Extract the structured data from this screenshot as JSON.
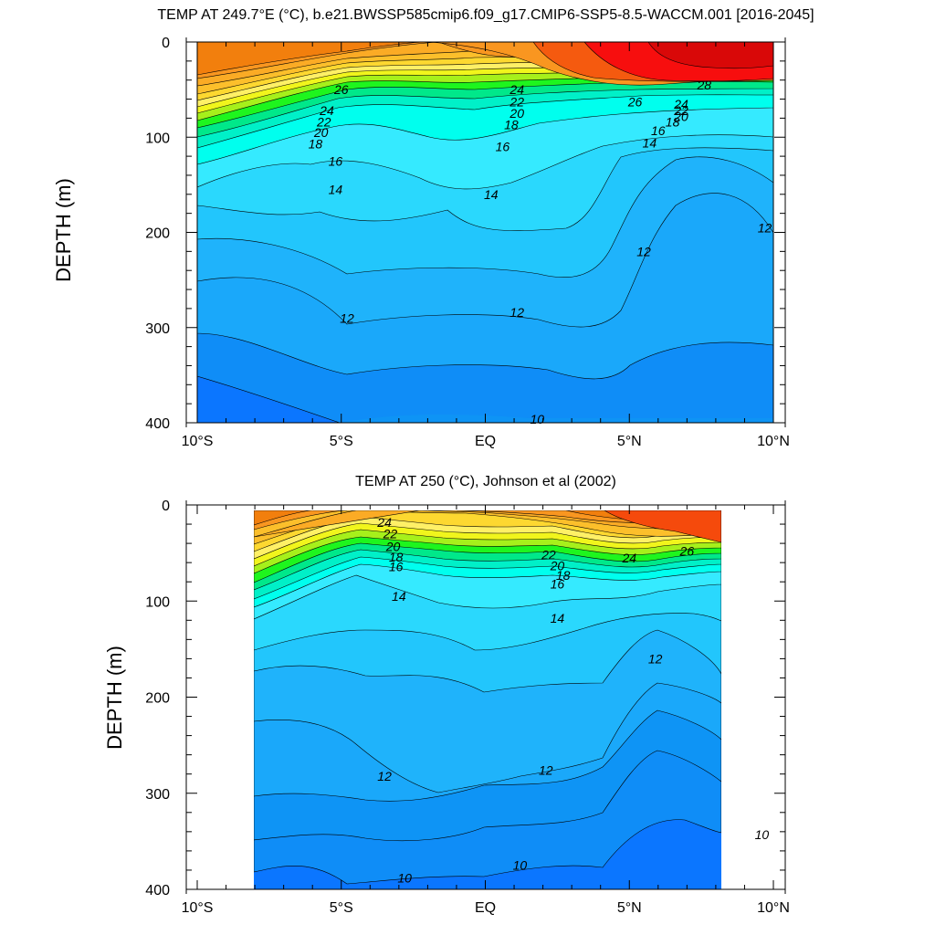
{
  "chart_data": [
    {
      "type": "contour",
      "title": "TEMP AT 249.7°E (°C), b.e21.BWSSP585cmip6.f09_g17.CMIP6-SSP5-8.5-WACCM.001 [2016-2045]",
      "ylabel": "DEPTH (m)",
      "xlabel": "",
      "x_ticks": [
        "10°S",
        "5°S",
        "EQ",
        "5°N",
        "10°N"
      ],
      "x_tick_values": [
        -10,
        -5,
        0,
        5,
        10
      ],
      "y_ticks": [
        "0",
        "100",
        "200",
        "300",
        "400"
      ],
      "y_tick_values": [
        0,
        100,
        200,
        300,
        400
      ],
      "xlim": [
        -10,
        10
      ],
      "ylim": [
        0,
        400
      ],
      "y_reversed": true,
      "data_xrange": [
        -10,
        10
      ],
      "data_yrange": [
        5,
        400
      ],
      "levels": [
        10,
        11,
        12,
        13,
        14,
        15,
        16,
        17,
        18,
        19,
        20,
        21,
        22,
        23,
        24,
        25,
        26,
        27,
        28,
        29
      ],
      "contour_labels": [
        {
          "value": "26",
          "x": -5.0,
          "y": 50
        },
        {
          "value": "24",
          "x": -5.5,
          "y": 72
        },
        {
          "value": "22",
          "x": -5.6,
          "y": 84
        },
        {
          "value": "20",
          "x": -5.7,
          "y": 95
        },
        {
          "value": "18",
          "x": -5.9,
          "y": 107
        },
        {
          "value": "16",
          "x": -5.2,
          "y": 125
        },
        {
          "value": "14",
          "x": -5.2,
          "y": 155
        },
        {
          "value": "14",
          "x": 0.2,
          "y": 160
        },
        {
          "value": "12",
          "x": -4.8,
          "y": 290
        },
        {
          "value": "12",
          "x": 1.1,
          "y": 284
        },
        {
          "value": "24",
          "x": 1.1,
          "y": 50
        },
        {
          "value": "22",
          "x": 1.1,
          "y": 63
        },
        {
          "value": "20",
          "x": 1.1,
          "y": 75
        },
        {
          "value": "18",
          "x": 0.9,
          "y": 87
        },
        {
          "value": "16",
          "x": 0.6,
          "y": 110
        },
        {
          "value": "26",
          "x": 5.2,
          "y": 63
        },
        {
          "value": "24",
          "x": 6.8,
          "y": 65
        },
        {
          "value": "22",
          "x": 6.8,
          "y": 72
        },
        {
          "value": "20",
          "x": 6.8,
          "y": 78
        },
        {
          "value": "18",
          "x": 6.5,
          "y": 84
        },
        {
          "value": "16",
          "x": 6.0,
          "y": 93
        },
        {
          "value": "14",
          "x": 5.7,
          "y": 106
        },
        {
          "value": "12",
          "x": 5.5,
          "y": 220
        },
        {
          "value": "12",
          "x": 9.7,
          "y": 195
        },
        {
          "value": "28",
          "x": 7.6,
          "y": 45
        },
        {
          "value": "10",
          "x": 1.8,
          "y": 396
        }
      ]
    },
    {
      "type": "contour",
      "title": "TEMP AT 250 (°C), Johnson et al (2002)",
      "ylabel": "DEPTH (m)",
      "xlabel": "",
      "x_ticks": [
        "10°S",
        "5°S",
        "EQ",
        "5°N",
        "10°N"
      ],
      "x_tick_values": [
        -10,
        -5,
        0,
        5,
        10
      ],
      "y_ticks": [
        "0",
        "100",
        "200",
        "300",
        "400"
      ],
      "y_tick_values": [
        0,
        100,
        200,
        300,
        400
      ],
      "xlim": [
        -10,
        10
      ],
      "ylim": [
        0,
        400
      ],
      "y_reversed": true,
      "data_xrange": [
        -8,
        8.2
      ],
      "data_yrange": [
        5,
        400
      ],
      "levels": [
        10,
        11,
        12,
        13,
        14,
        15,
        16,
        17,
        18,
        19,
        20,
        21,
        22,
        23,
        24,
        25,
        26,
        27
      ],
      "contour_labels": [
        {
          "value": "24",
          "x": -3.5,
          "y": 18
        },
        {
          "value": "22",
          "x": -3.3,
          "y": 30
        },
        {
          "value": "20",
          "x": -3.2,
          "y": 43
        },
        {
          "value": "18",
          "x": -3.1,
          "y": 54
        },
        {
          "value": "16",
          "x": -3.1,
          "y": 64
        },
        {
          "value": "14",
          "x": -3.0,
          "y": 95
        },
        {
          "value": "12",
          "x": -3.5,
          "y": 282
        },
        {
          "value": "12",
          "x": 2.1,
          "y": 276
        },
        {
          "value": "22",
          "x": 2.2,
          "y": 52
        },
        {
          "value": "20",
          "x": 2.5,
          "y": 63
        },
        {
          "value": "18",
          "x": 2.7,
          "y": 73
        },
        {
          "value": "16",
          "x": 2.5,
          "y": 82
        },
        {
          "value": "14",
          "x": 2.5,
          "y": 118
        },
        {
          "value": "24",
          "x": 5.0,
          "y": 55
        },
        {
          "value": "26",
          "x": 7.0,
          "y": 48
        },
        {
          "value": "12",
          "x": 5.9,
          "y": 160
        },
        {
          "value": "10",
          "x": 1.2,
          "y": 375
        },
        {
          "value": "10",
          "x": 9.6,
          "y": 343
        },
        {
          "value": "10",
          "x": -2.8,
          "y": 388
        }
      ]
    }
  ]
}
